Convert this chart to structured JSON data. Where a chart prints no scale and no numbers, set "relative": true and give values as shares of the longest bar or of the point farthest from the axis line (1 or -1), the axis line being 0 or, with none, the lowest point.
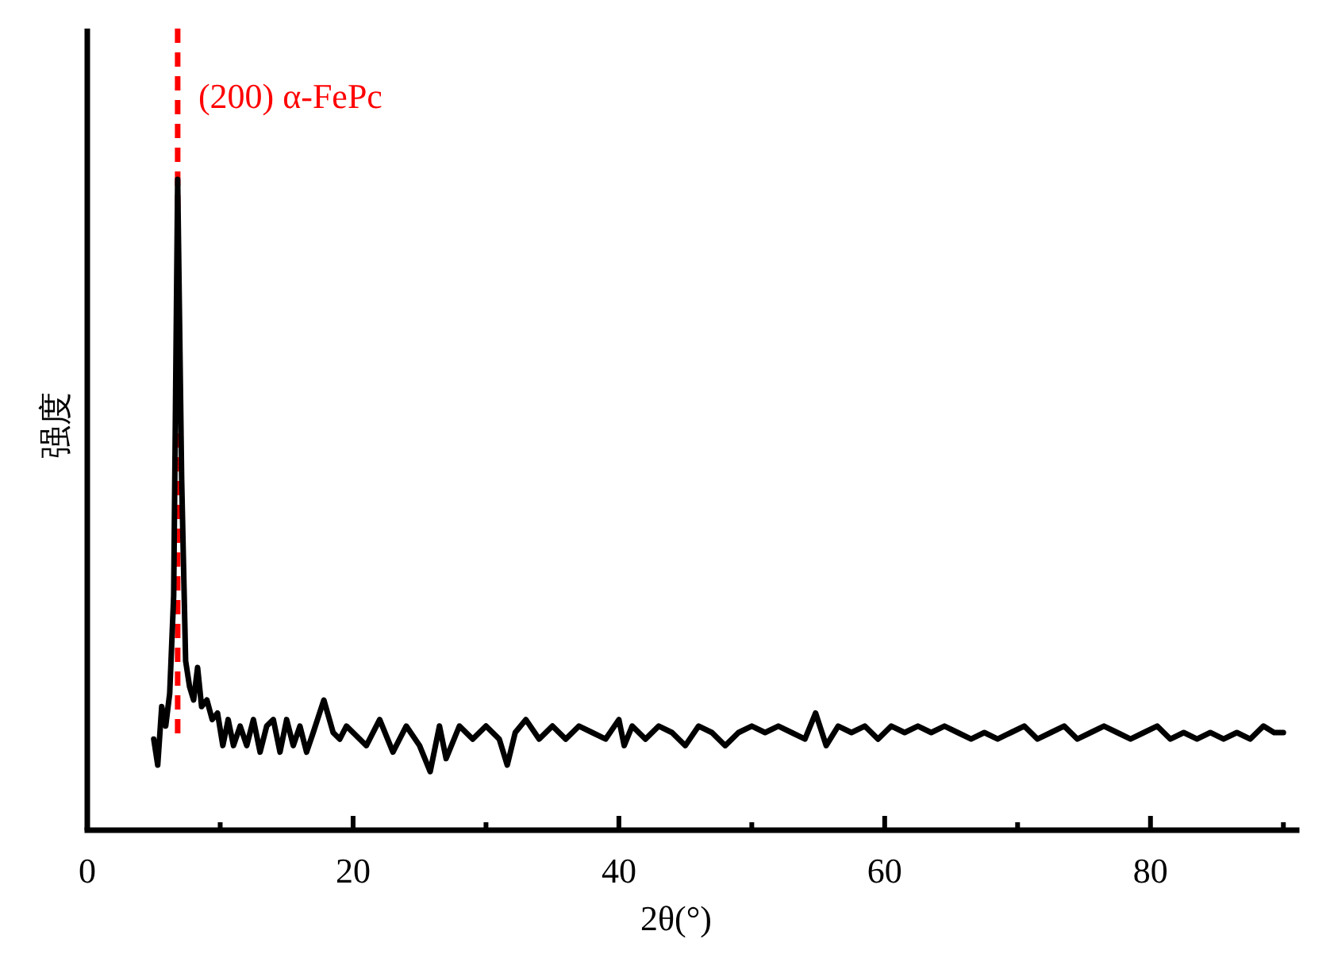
{
  "chart_data": {
    "type": "line",
    "xlabel": "2θ(°)",
    "ylabel": "强度",
    "relative": true,
    "tick_labels": "x",
    "xlim": [
      0,
      91
    ],
    "xticks": [
      0,
      {
        "value": 10,
        "label": null
      },
      20,
      {
        "value": 30,
        "label": null
      },
      40,
      {
        "value": 50,
        "label": null
      },
      60,
      {
        "value": 70,
        "label": null
      },
      80,
      {
        "value": 90,
        "label": null
      }
    ],
    "ref_lines": [
      {
        "axis": "x",
        "value": 6.8,
        "label": "(200) α-FePc",
        "color": "#ff0000",
        "line_style": "dashed"
      }
    ],
    "series": [
      {
        "color": "#000000",
        "x": [
          5.0,
          5.3,
          5.6,
          5.9,
          6.2,
          6.5,
          6.8,
          7.1,
          7.4,
          7.7,
          8.0,
          8.3,
          8.6,
          9.0,
          9.4,
          9.8,
          10.2,
          10.6,
          11.0,
          11.5,
          12.0,
          12.5,
          13.0,
          13.5,
          14.0,
          14.5,
          15.0,
          15.5,
          16.0,
          16.5,
          17.0,
          17.8,
          18.5,
          19.0,
          19.5,
          20.0,
          21.0,
          22.0,
          23.0,
          24.0,
          25.0,
          25.8,
          26.5,
          27.0,
          28.0,
          29.0,
          30.0,
          31.0,
          31.6,
          32.2,
          33.0,
          34.0,
          35.0,
          36.0,
          37.0,
          38.0,
          39.0,
          40.0,
          40.4,
          41.0,
          42.0,
          43.0,
          44.0,
          45.0,
          46.0,
          47.0,
          48.0,
          49.0,
          50.0,
          51.0,
          52.0,
          53.0,
          54.0,
          54.8,
          55.6,
          56.5,
          57.5,
          58.5,
          59.5,
          60.5,
          61.5,
          62.5,
          63.5,
          64.5,
          65.5,
          66.5,
          67.5,
          68.5,
          69.5,
          70.5,
          71.5,
          72.5,
          73.5,
          74.5,
          75.5,
          76.5,
          77.5,
          78.5,
          79.5,
          80.5,
          81.5,
          82.5,
          83.5,
          84.5,
          85.5,
          86.5,
          87.5,
          88.5,
          89.3,
          90.0
        ],
        "values": [
          0.14,
          0.1,
          0.19,
          0.16,
          0.21,
          0.36,
          1,
          0.54,
          0.26,
          0.22,
          0.2,
          0.25,
          0.19,
          0.2,
          0.17,
          0.18,
          0.13,
          0.17,
          0.13,
          0.16,
          0.13,
          0.17,
          0.12,
          0.16,
          0.17,
          0.12,
          0.17,
          0.13,
          0.16,
          0.12,
          0.15,
          0.2,
          0.15,
          0.14,
          0.16,
          0.15,
          0.13,
          0.17,
          0.12,
          0.16,
          0.13,
          0.09,
          0.16,
          0.11,
          0.16,
          0.14,
          0.16,
          0.14,
          0.1,
          0.15,
          0.17,
          0.14,
          0.16,
          0.14,
          0.16,
          0.15,
          0.14,
          0.17,
          0.13,
          0.16,
          0.14,
          0.16,
          0.15,
          0.13,
          0.16,
          0.15,
          0.13,
          0.15,
          0.16,
          0.15,
          0.16,
          0.15,
          0.14,
          0.18,
          0.13,
          0.16,
          0.15,
          0.16,
          0.14,
          0.16,
          0.15,
          0.16,
          0.15,
          0.16,
          0.15,
          0.14,
          0.15,
          0.14,
          0.15,
          0.16,
          0.14,
          0.15,
          0.16,
          0.14,
          0.15,
          0.16,
          0.15,
          0.14,
          0.15,
          0.16,
          0.14,
          0.15,
          0.14,
          0.15,
          0.14,
          0.15,
          0.14,
          0.16,
          0.15,
          0.15
        ]
      }
    ]
  }
}
